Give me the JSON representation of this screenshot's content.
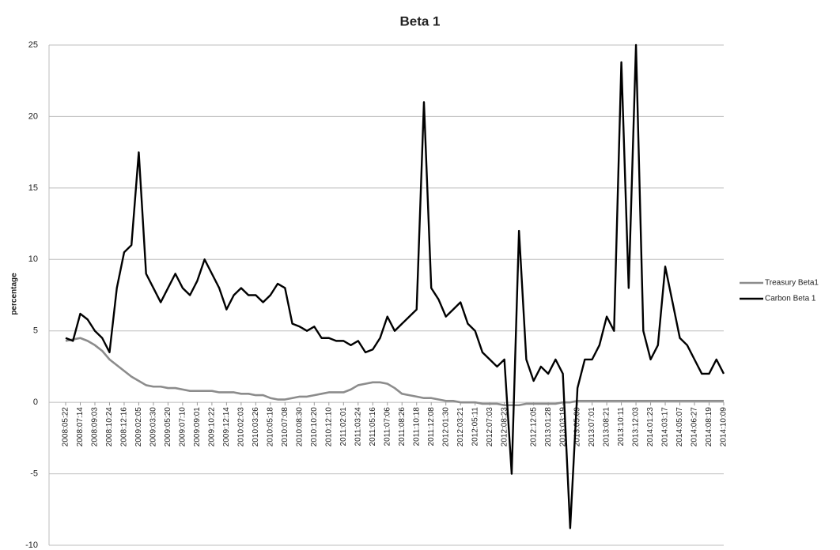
{
  "chart_data": {
    "type": "line",
    "title": "Beta 1",
    "y_label": "percentage",
    "categories": [
      "2008:05:22",
      null,
      "2008:07:14",
      null,
      "2008:09:03",
      null,
      "2008:10:24",
      null,
      "2008:12:16",
      null,
      "2009:02:05",
      null,
      "2009:03:30",
      null,
      "2009:05:20",
      null,
      "2009:07:10",
      null,
      "2009:09:01",
      null,
      "2009:10:22",
      null,
      "2009:12:14",
      null,
      "2010:02:03",
      null,
      "2010:03:26",
      null,
      "2010:05:18",
      null,
      "2010:07:08",
      null,
      "2010:08:30",
      null,
      "2010:10:20",
      null,
      "2010:12:10",
      null,
      "2011:02:01",
      null,
      "2011:03:24",
      null,
      "2011:05:16",
      null,
      "2011:07:06",
      null,
      "2011:08:26",
      null,
      "2011:10:18",
      null,
      "2011:12:08",
      null,
      "2012:01:30",
      null,
      "2012:03:21",
      null,
      "2012:05:11",
      null,
      "2012:07:03",
      null,
      "2012:08:23",
      null,
      null,
      null,
      "2012:12:05",
      null,
      "2013:01:28",
      null,
      "2013:03:19",
      null,
      "2013:05:09",
      null,
      "2013:07:01",
      null,
      "2013:08:21",
      null,
      "2013:10:11",
      null,
      "2013:12:03",
      null,
      "2014:01:23",
      null,
      "2014:03:17",
      null,
      "2014:05:07",
      null,
      "2014:06:27",
      null,
      "2014:08:19",
      null,
      "2014:10:09"
    ],
    "series": [
      {
        "name": "Treasury Beta1",
        "color": "#8c8c8c",
        "values": [
          4.3,
          4.4,
          4.5,
          4.3,
          4,
          3.6,
          3,
          2.6,
          2.2,
          1.8,
          1.5,
          1.2,
          1.1,
          1.1,
          1,
          1,
          0.9,
          0.8,
          0.8,
          0.8,
          0.8,
          0.7,
          0.7,
          0.7,
          0.6,
          0.6,
          0.5,
          0.5,
          0.3,
          0.2,
          0.2,
          0.3,
          0.4,
          0.4,
          0.5,
          0.6,
          0.7,
          0.7,
          0.7,
          0.9,
          1.2,
          1.3,
          1.4,
          1.4,
          1.3,
          1,
          0.6,
          0.5,
          0.4,
          0.3,
          0.3,
          0.2,
          0.1,
          0.1,
          0,
          0,
          0,
          -0.1,
          -0.1,
          -0.1,
          -0.2,
          -0.2,
          -0.2,
          -0.1,
          -0.1,
          -0.1,
          -0.1,
          -0.1,
          0,
          0,
          0.1,
          0.1,
          0.1,
          0.1,
          0.1,
          0.1,
          0.1,
          0.1,
          0.1,
          0.1,
          0.1,
          0.1,
          0.1,
          0.1,
          0.1,
          0.1,
          0.1,
          0.1,
          0.1,
          0.1,
          0.1
        ]
      },
      {
        "name": "Carbon Beta 1",
        "color": "#000000",
        "values": [
          4.5,
          4.3,
          6.2,
          5.8,
          5,
          4.5,
          3.5,
          8,
          10.5,
          11,
          17.5,
          9,
          8,
          7,
          8,
          9,
          8,
          7.5,
          8.5,
          10,
          9,
          8,
          6.5,
          7.5,
          8,
          7.5,
          7.5,
          7,
          7.5,
          8.3,
          8,
          5.5,
          5.3,
          5,
          5.3,
          4.5,
          4.5,
          4.3,
          4.3,
          4,
          4.3,
          3.5,
          3.7,
          4.5,
          6,
          5,
          5.5,
          6,
          6.5,
          21,
          8,
          7.2,
          6,
          6.5,
          7,
          5.5,
          5,
          3.5,
          3,
          2.5,
          3,
          -5,
          12,
          3,
          1.5,
          2.5,
          2,
          3,
          2,
          -8.8,
          1,
          3,
          3,
          4,
          6,
          5,
          23.8,
          8,
          25,
          5,
          3,
          4,
          9.5,
          7,
          4.5,
          4,
          3,
          2,
          2,
          3,
          2
        ]
      }
    ],
    "ylim": [
      -10,
      25
    ],
    "yticks": [
      -10,
      -5,
      0,
      5,
      10,
      15,
      20,
      25
    ],
    "grid": true,
    "legend": "right"
  }
}
